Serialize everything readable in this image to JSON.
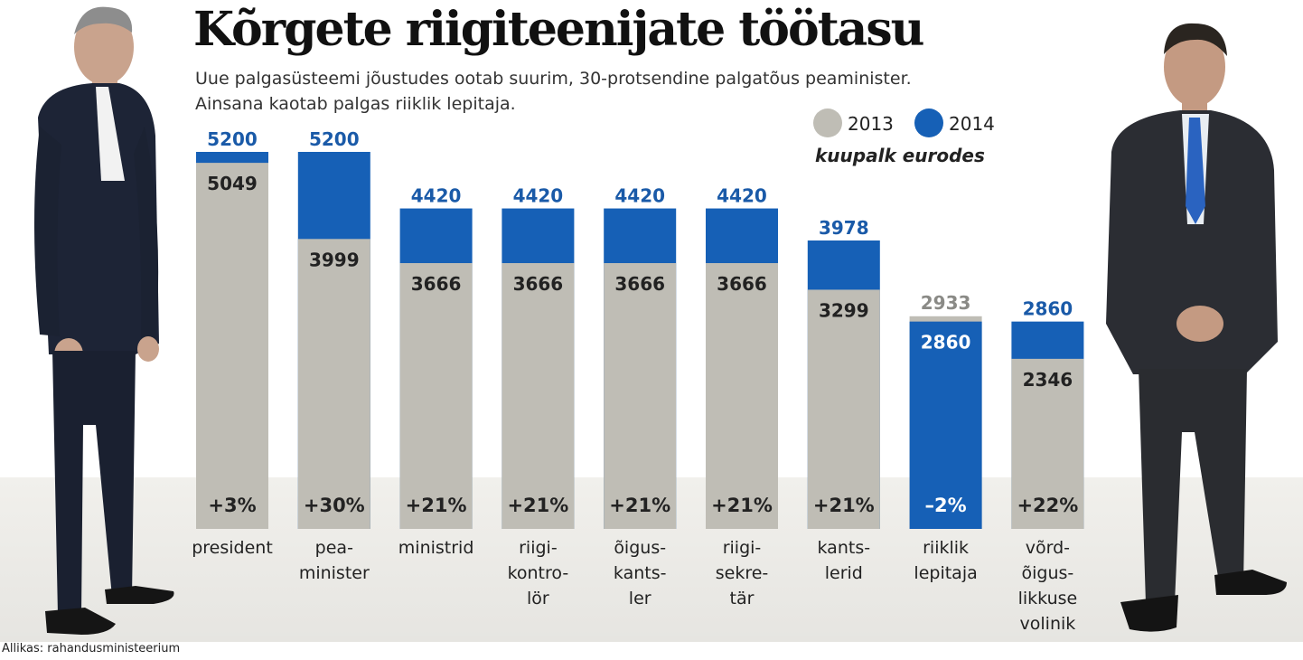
{
  "title": "Kõrgete riigiteenijate töötasu",
  "subtitle_line1": "Uue palgasüsteemi jõustudes ootab suurim, 30-protsendine palgatõus peaminister.",
  "subtitle_line2": "Ainsana kaotab palgas riiklik lepitaja.",
  "legend": {
    "series_2013": "2013",
    "series_2014": "2014",
    "unit": "kuupalk eurodes"
  },
  "colors": {
    "bar_2013": "#bfbdb5",
    "bar_2014": "#1660b6",
    "label_2014": "#1a5aa8",
    "label_2013": "#222222",
    "label_2013_top": "#8a8a86"
  },
  "source": "Allikas: rahandusministeerium",
  "chart_data": {
    "type": "bar",
    "categories": [
      [
        "president"
      ],
      [
        "pea-",
        "minister"
      ],
      [
        "ministrid"
      ],
      [
        "riigi-",
        "kontro-",
        "lör"
      ],
      [
        "õigus-",
        "kants-",
        "ler"
      ],
      [
        "riigi-",
        "sekre-",
        "tär"
      ],
      [
        "kants-",
        "lerid"
      ],
      [
        "riiklik",
        "lepitaja"
      ],
      [
        "võrd-",
        "õigus-",
        "likkuse",
        "volinik"
      ]
    ],
    "series": [
      {
        "name": "2013",
        "values": [
          5049,
          3999,
          3666,
          3666,
          3666,
          3666,
          3299,
          2933,
          2346
        ]
      },
      {
        "name": "2014",
        "values": [
          5200,
          5200,
          4420,
          4420,
          4420,
          4420,
          3978,
          2860,
          2860
        ]
      }
    ],
    "change_labels": [
      "+3%",
      "+30%",
      "+21%",
      "+21%",
      "+21%",
      "+21%",
      "+21%",
      "–2%",
      "+22%"
    ],
    "ylim": [
      0,
      5200
    ]
  }
}
